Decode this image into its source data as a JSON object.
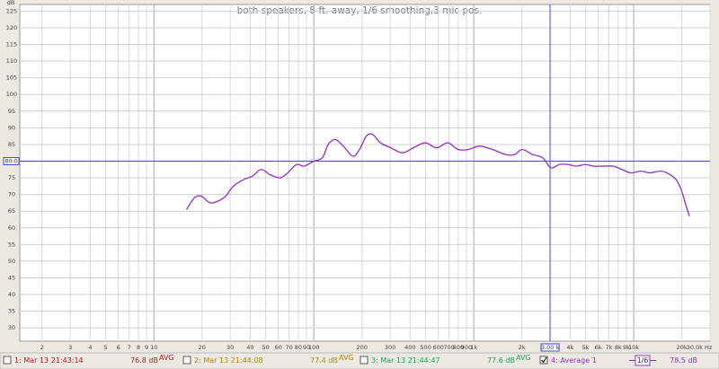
{
  "chart_data": {
    "type": "line",
    "title": "both speakers, 8 ft. away, 1/6 smoothing,3 mic pos.",
    "y_label": "dB",
    "log_x": true,
    "grid": true,
    "xlim": [
      1.45,
      30000
    ],
    "ylim": [
      26,
      127
    ],
    "xticks": [
      2,
      3,
      4,
      5,
      6,
      7,
      8,
      9,
      10,
      20,
      30,
      40,
      50,
      60,
      70,
      80,
      90,
      100,
      200,
      300,
      400,
      500,
      600,
      700,
      800,
      900,
      {
        "value": 1000,
        "label": "1k"
      },
      {
        "value": 2000,
        "label": "2k"
      },
      {
        "value": 4000,
        "label": "4k"
      },
      {
        "value": 5000,
        "label": "5k"
      },
      {
        "value": 6000,
        "label": "6k"
      },
      {
        "value": 7000,
        "label": "7k"
      },
      {
        "value": 8000,
        "label": "8k"
      },
      {
        "value": 9000,
        "label": "9k"
      },
      {
        "value": 10000,
        "label": "10k"
      },
      {
        "value": 20000,
        "label": "20k"
      },
      {
        "value": 30000,
        "label": "30.0k Hz"
      }
    ],
    "yticks": [
      30,
      35,
      40,
      45,
      50,
      55,
      60,
      65,
      70,
      75,
      85,
      90,
      95,
      100,
      105,
      110,
      115,
      120,
      125
    ],
    "cursor": {
      "x": {
        "value": 3000,
        "label": "3.00 k"
      },
      "y": {
        "value": 80,
        "label": "80.0"
      },
      "color": "#4a4ac8"
    },
    "x": [
      16,
      17.9,
      19.8,
      22.4,
      25.1,
      28.1,
      31.4,
      36.5,
      41.3,
      46.8,
      53,
      61.5,
      68.7,
      78,
      87,
      100,
      113,
      123,
      136,
      153,
      175,
      193,
      213,
      233,
      261,
      304,
      357,
      419,
      497,
      585,
      687,
      797,
      922,
      1090,
      1310,
      1580,
      1800,
      2010,
      2330,
      2700,
      3030,
      3430,
      3880,
      4390,
      4970,
      5610,
      6350,
      7450,
      8450,
      9560,
      11100,
      12600,
      14900,
      16800,
      18400,
      19800,
      21300,
      22300
    ],
    "series": [
      {
        "name": "4: Average 1",
        "color": "#9430c0",
        "level": "78.5 dB",
        "smoothing": "1/6",
        "values": [
          65.5,
          69,
          69.5,
          67.5,
          68,
          69.5,
          72.5,
          74.5,
          75.5,
          77.5,
          76,
          75,
          76.5,
          79,
          78.5,
          80,
          81,
          85,
          86.5,
          84.5,
          81.5,
          83.5,
          87.5,
          88,
          85.5,
          84,
          82.5,
          84,
          85.5,
          84,
          85.5,
          83.5,
          83.5,
          84.5,
          83.5,
          82,
          82,
          83.5,
          82,
          81,
          78,
          79,
          79,
          78.5,
          79,
          78.5,
          78.5,
          78.5,
          77.5,
          76.5,
          77,
          76.5,
          77,
          76,
          74.5,
          71.5,
          66.5,
          63.5
        ]
      }
    ],
    "measurements": [
      {
        "name": "1: Mar 13 21:43:14",
        "color": "#b02020",
        "level": "76.8 dB",
        "tag": "AVG"
      },
      {
        "name": "2: Mar 13 21:44:08",
        "color": "#b08a10",
        "level": "77.4 dB",
        "tag": "AVG"
      },
      {
        "name": "3: Mar 13 21:44:47",
        "color": "#20a060",
        "level": "77.6 dB",
        "tag": "AVG"
      }
    ]
  }
}
